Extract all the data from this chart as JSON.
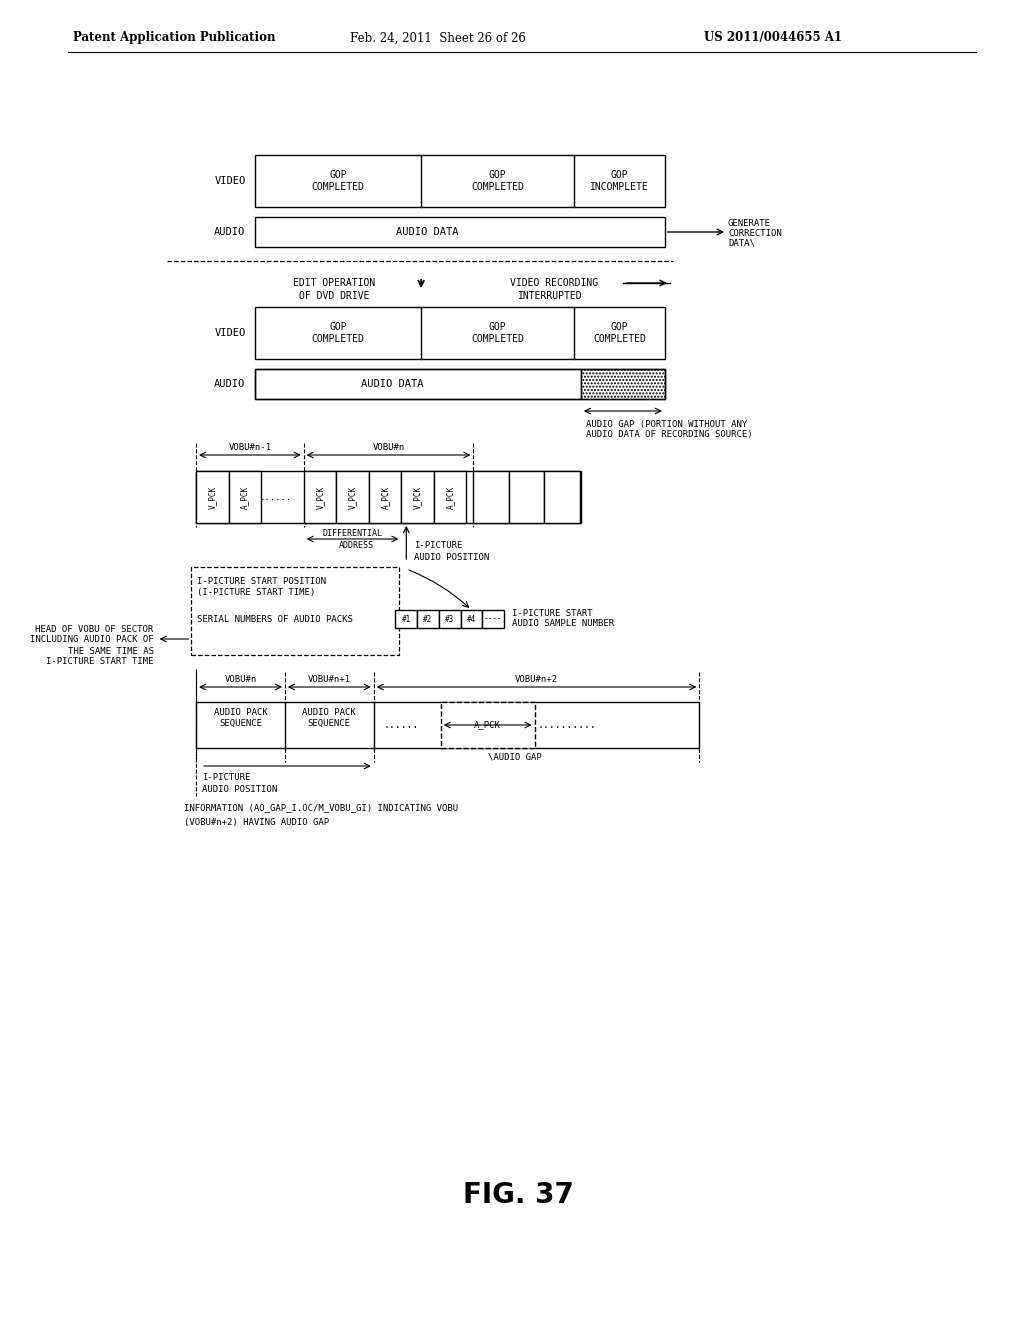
{
  "title": "FIG. 37",
  "header_left": "Patent Application Publication",
  "header_mid": "Feb. 24, 2011  Sheet 26 of 26",
  "header_right": "US 2011/0044655 A1",
  "bg_color": "#ffffff",
  "text_color": "#000000"
}
